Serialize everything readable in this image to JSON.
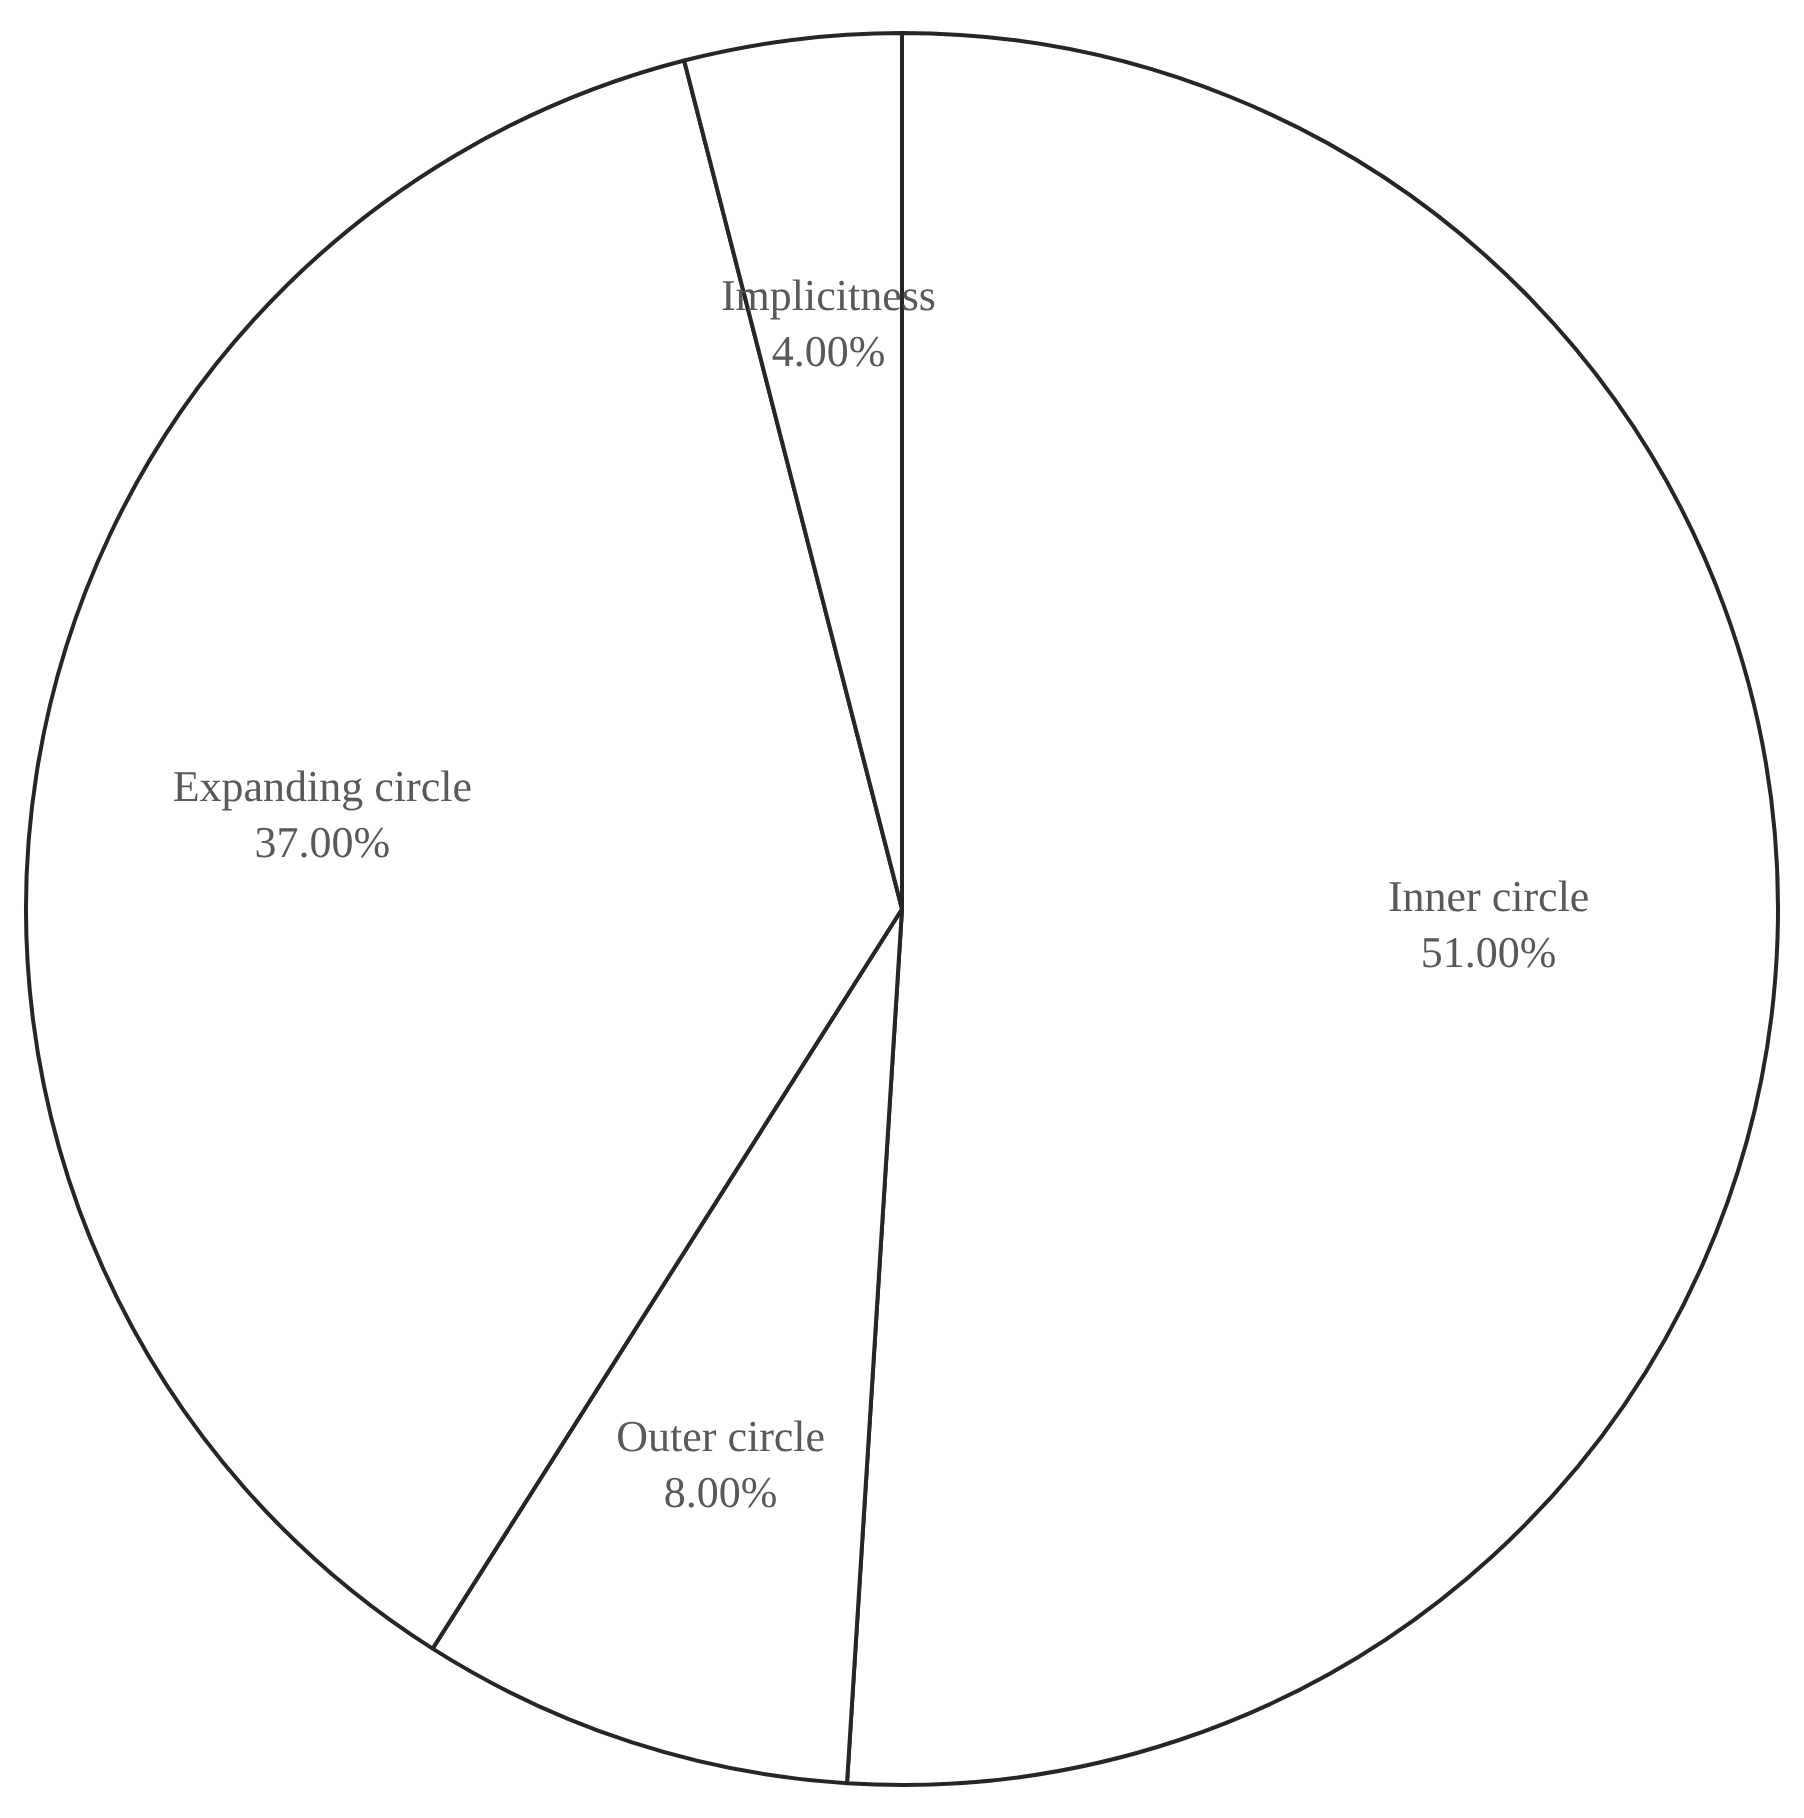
{
  "chart_data": {
    "type": "pie",
    "categories": [
      "Inner circle",
      "Outer circle",
      "Expanding circle",
      "Implicitness"
    ],
    "values": [
      51,
      8,
      37,
      4
    ],
    "colors": [
      "#ffffff",
      "#ffffff",
      "#ffffff",
      "#ffffff"
    ],
    "value_labels": [
      "51.00%",
      "8.00%",
      "37.00%",
      "4.00%"
    ],
    "legend": false
  }
}
